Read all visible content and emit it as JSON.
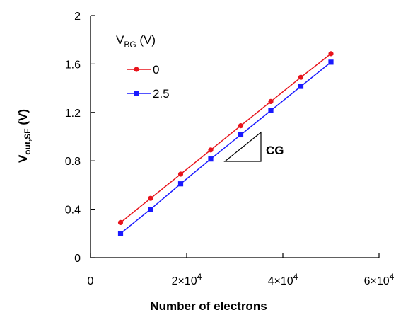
{
  "chart_data": {
    "type": "line",
    "title": "",
    "xlabel": "Number of electrons",
    "ylabel": {
      "main": "V",
      "sub": "out,SF",
      "unit": " (V)"
    },
    "xlim": [
      0,
      60000
    ],
    "ylim": [
      0,
      2
    ],
    "x_ticks": [
      {
        "value": 0,
        "base": "0",
        "exp": ""
      },
      {
        "value": 20000,
        "base": "2×10",
        "exp": "4"
      },
      {
        "value": 40000,
        "base": "4×10",
        "exp": "4"
      },
      {
        "value": 60000,
        "base": "6×10",
        "exp": "4"
      }
    ],
    "y_ticks": [
      {
        "value": 0,
        "label": "0"
      },
      {
        "value": 0.4,
        "label": "0.4"
      },
      {
        "value": 0.8,
        "label": "0.8"
      },
      {
        "value": 1.2,
        "label": "1.2"
      },
      {
        "value": 1.6,
        "label": "1.6"
      },
      {
        "value": 2.0,
        "label": "2"
      }
    ],
    "grid": false,
    "legend": {
      "title_main": "V",
      "title_sub": "BG",
      "title_unit": " (V)",
      "placement": "top-left"
    },
    "series": [
      {
        "name": "0",
        "color": "#e8141c",
        "marker": "circle",
        "x": [
          6250,
          12500,
          18750,
          25000,
          31250,
          37500,
          43750,
          50000
        ],
        "y": [
          0.29,
          0.49,
          0.69,
          0.89,
          1.09,
          1.29,
          1.49,
          1.685
        ]
      },
      {
        "name": "2.5",
        "color": "#1a1aff",
        "marker": "square",
        "x": [
          6250,
          12500,
          18750,
          25000,
          31250,
          37500,
          43750,
          50000
        ],
        "y": [
          0.2,
          0.4,
          0.61,
          0.815,
          1.015,
          1.215,
          1.415,
          1.615
        ]
      }
    ],
    "annotation": {
      "label": "CG"
    }
  }
}
